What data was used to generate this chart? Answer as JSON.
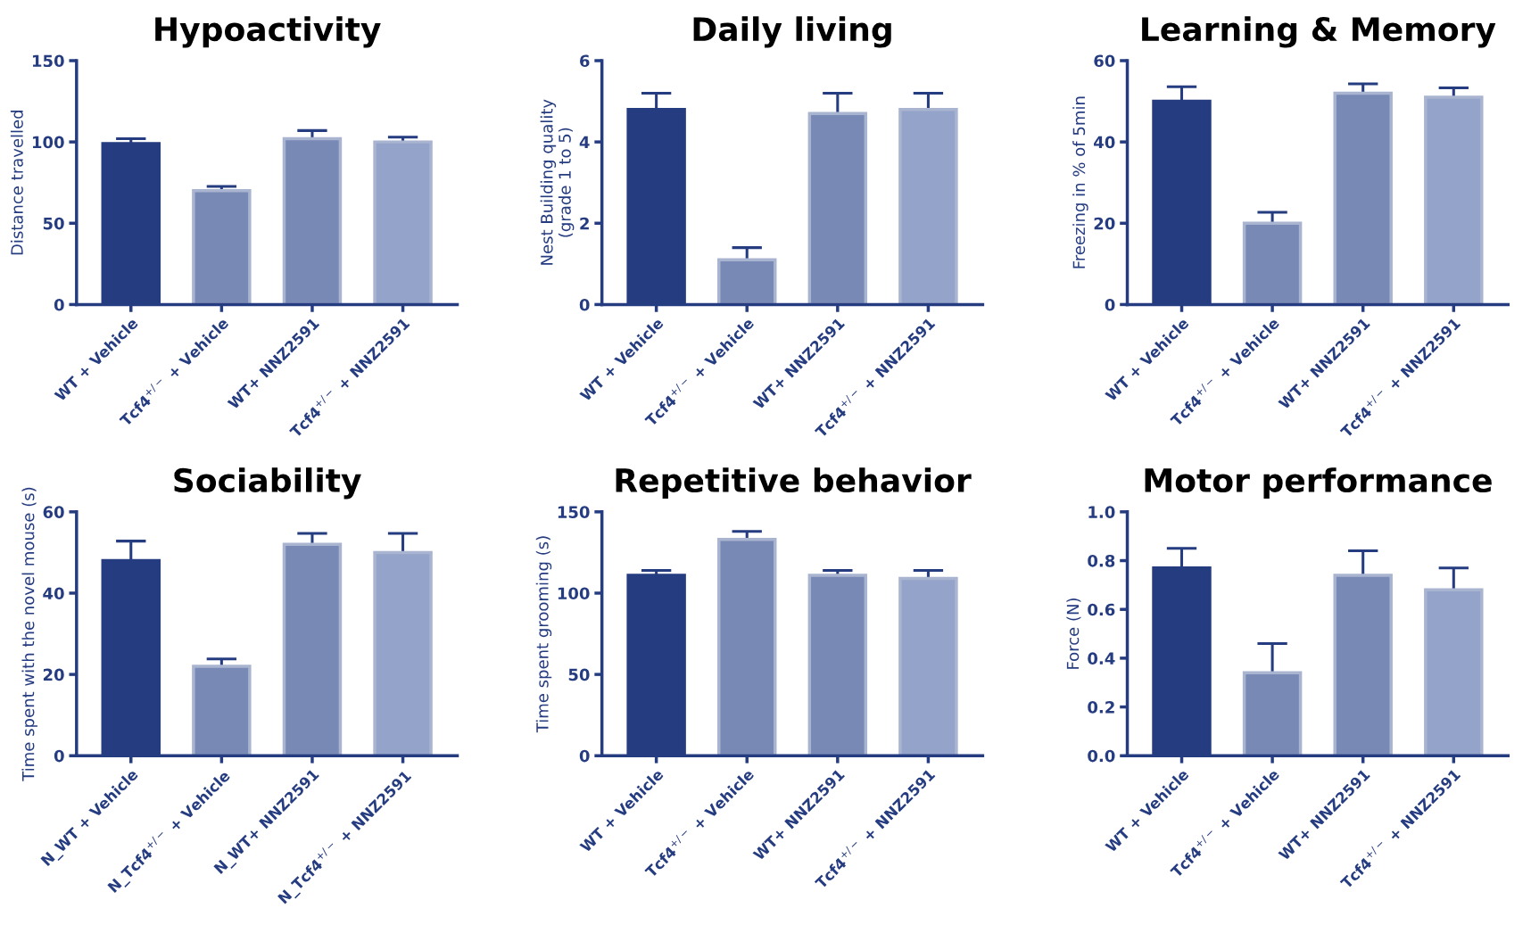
{
  "chart_data": [
    {
      "type": "bar",
      "title": "Hypoactivity",
      "ylabel": "Distance travelled",
      "categories": [
        "WT + Vehicle",
        "Tcf4$^{+/−}$ + Vehicle",
        "WT+ NNZ2591",
        "Tcf4$^{+/−}$ + NNZ2591"
      ],
      "values": [
        99,
        70,
        102,
        100
      ],
      "errors": [
        3,
        2.6,
        5,
        3
      ],
      "colors": [
        "#253c80",
        "#7889b5",
        "#7889b5",
        "#94a3c9"
      ],
      "ylim": [
        0,
        150
      ],
      "yticks": [
        0,
        50,
        100,
        150
      ],
      "grid": false
    },
    {
      "type": "bar",
      "title": "Daily living",
      "ylabel": "Nest Building quality\n(grade 1 to 5)",
      "categories": [
        "WT + Vehicle",
        "Tcf4$^{+/−}$ + Vehicle",
        "WT+ NNZ2591",
        "Tcf4$^{+/−}$ + NNZ2591"
      ],
      "values": [
        4.8,
        1.1,
        4.7,
        4.8
      ],
      "errors": [
        0.4,
        0.3,
        0.5,
        0.4
      ],
      "colors": [
        "#253c80",
        "#7889b5",
        "#7889b5",
        "#94a3c9"
      ],
      "ylim": [
        0,
        6
      ],
      "yticks": [
        0,
        2,
        4,
        6
      ],
      "grid": false
    },
    {
      "type": "bar",
      "title": "Learning & Memory",
      "ylabel": "Freezing in % of 5min",
      "categories": [
        "WT + Vehicle",
        "Tcf4$^{+/−}$ + Vehicle",
        "WT+ NNZ2591",
        "Tcf4$^{+/−}$ + NNZ2591"
      ],
      "values": [
        50,
        20,
        52,
        51
      ],
      "errors": [
        3.6,
        2.7,
        2.3,
        2.3
      ],
      "colors": [
        "#253c80",
        "#7889b5",
        "#7889b5",
        "#94a3c9"
      ],
      "ylim": [
        0,
        60
      ],
      "yticks": [
        0,
        20,
        40,
        60
      ],
      "grid": false
    },
    {
      "type": "bar",
      "title": "Sociability",
      "ylabel": "Time spent with the novel mouse (s)",
      "categories": [
        "N_WT + Vehicle",
        "N_Tcf4$^{+/−}$ + Vehicle",
        "N_WT+ NNZ2591",
        "N_Tcf4$^{+/−}$ + NNZ2591"
      ],
      "values": [
        48,
        22,
        52,
        50
      ],
      "errors": [
        4.8,
        1.8,
        2.7,
        4.7
      ],
      "colors": [
        "#253c80",
        "#7889b5",
        "#7889b5",
        "#94a3c9"
      ],
      "ylim": [
        0,
        60
      ],
      "yticks": [
        0,
        20,
        40,
        60
      ],
      "grid": false
    },
    {
      "type": "bar",
      "title": "Repetitive behavior",
      "ylabel": "Time spent grooming (s)",
      "categories": [
        "WT + Vehicle",
        "Tcf4$^{+/−}$ + Vehicle",
        "WT+ NNZ2591",
        "Tcf4$^{+/−}$ + NNZ2591"
      ],
      "values": [
        111,
        133,
        111,
        109
      ],
      "errors": [
        3,
        5,
        3,
        5
      ],
      "colors": [
        "#253c80",
        "#7889b5",
        "#7889b5",
        "#94a3c9"
      ],
      "ylim": [
        0,
        150
      ],
      "yticks": [
        0,
        50,
        100,
        150
      ],
      "grid": false
    },
    {
      "type": "bar",
      "title": "Motor performance",
      "ylabel": "Force (N)",
      "categories": [
        "WT + Vehicle",
        "Tcf4$^{+/−}$ + Vehicle",
        "WT+ NNZ2591",
        "Tcf4$^{+/−}$ + NNZ2591"
      ],
      "values": [
        0.77,
        0.34,
        0.74,
        0.68
      ],
      "errors": [
        0.08,
        0.12,
        0.1,
        0.09
      ],
      "colors": [
        "#253c80",
        "#7889b5",
        "#7889b5",
        "#94a3c9"
      ],
      "ylim": [
        0,
        1.0
      ],
      "yticks": [
        {
          "value": 0,
          "label": "0.0"
        },
        {
          "value": 0.2,
          "label": "0.2"
        },
        {
          "value": 0.4,
          "label": "0.4"
        },
        {
          "value": 0.6,
          "label": "0.6"
        },
        {
          "value": 0.8,
          "label": "0.8"
        },
        {
          "value": 1.0,
          "label": "1.0"
        }
      ],
      "grid": false
    }
  ]
}
